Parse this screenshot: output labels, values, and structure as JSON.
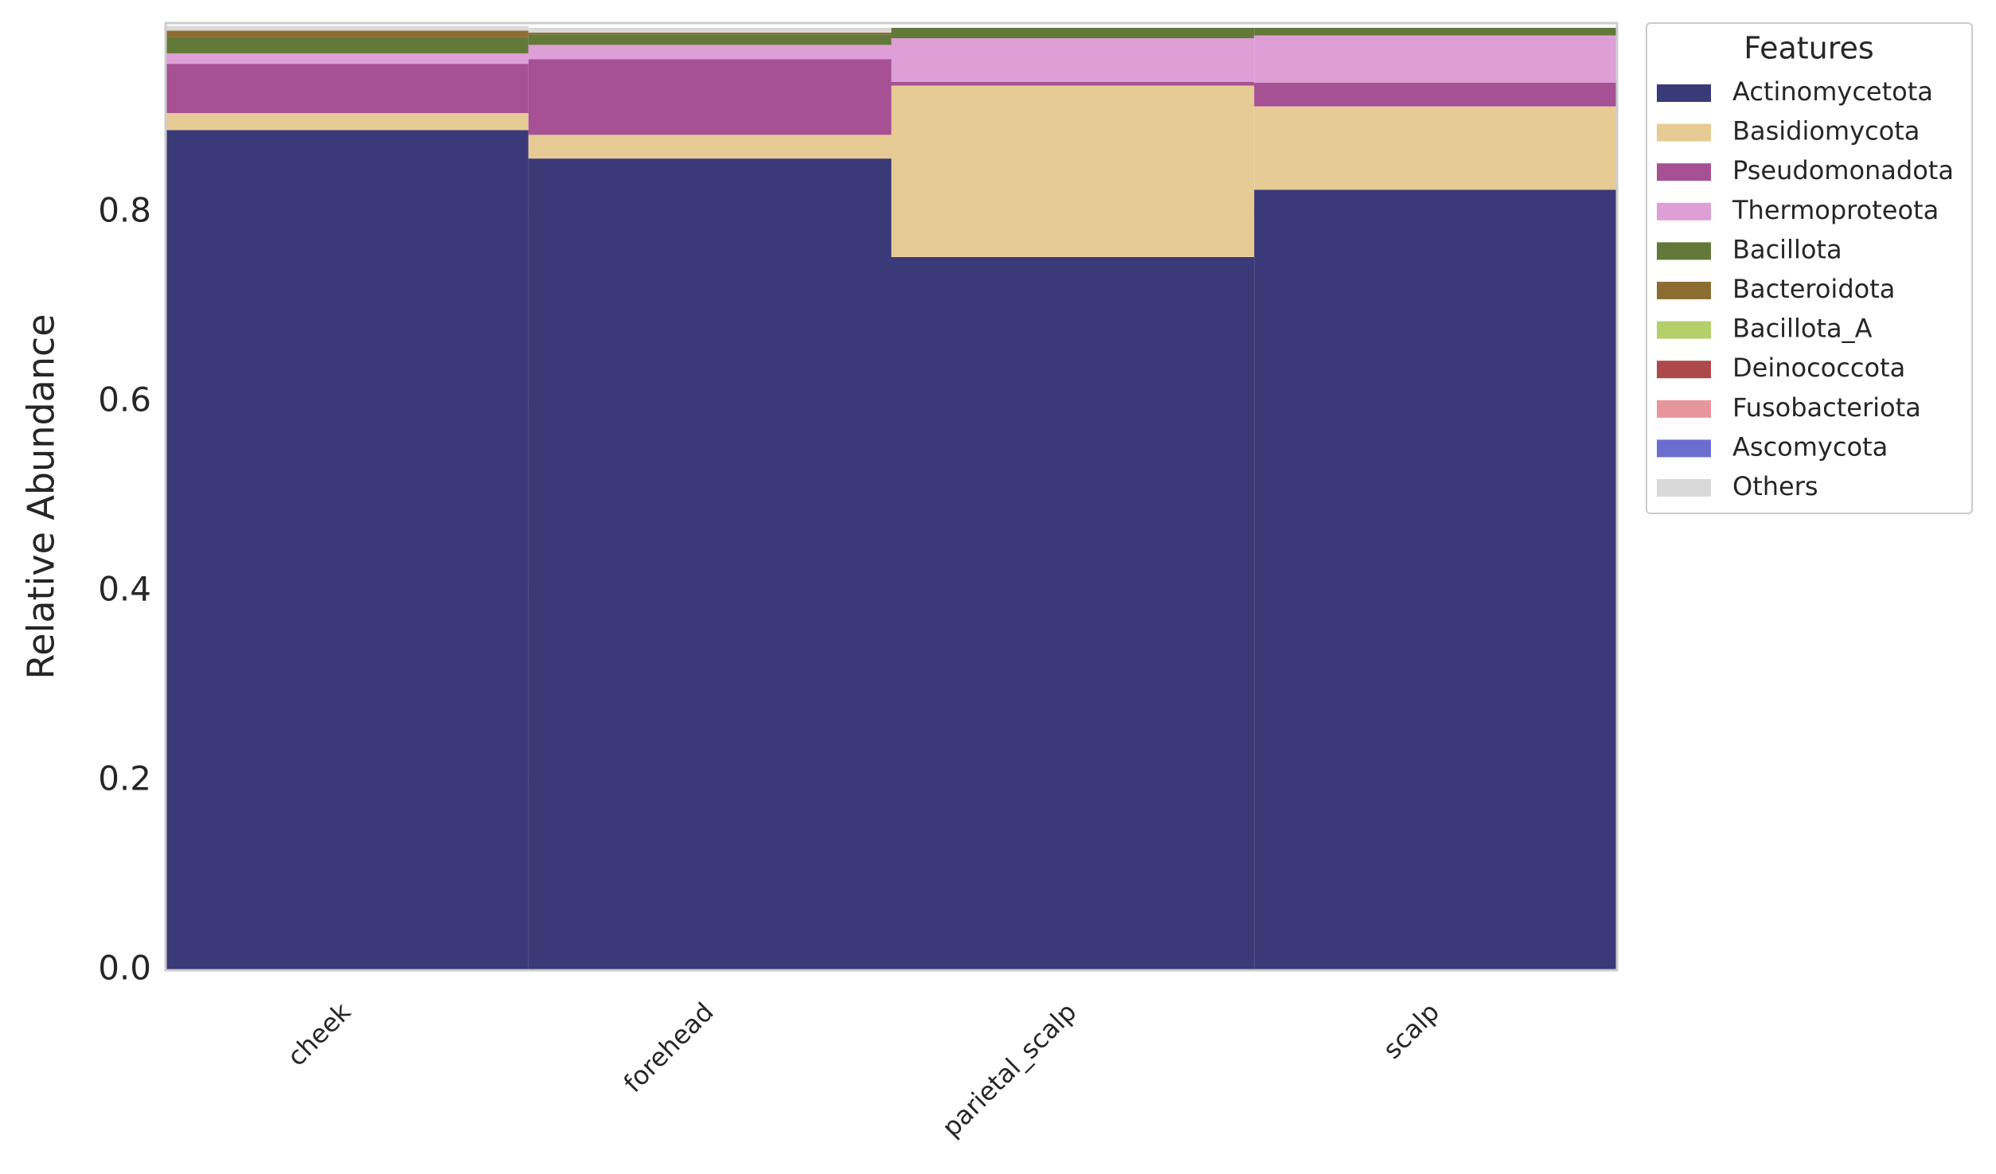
{
  "chart_data": {
    "type": "stacked_bar",
    "y_label": "Relative Abundance",
    "legend_title": "Features",
    "legend_position": "outside right",
    "categories": [
      "cheek",
      "forehead",
      "parietal_scalp",
      "scalp"
    ],
    "series": [
      {
        "name": "Actinomycetota",
        "color": "#3a3a78",
        "values": [
          0.887,
          0.857,
          0.753,
          0.824
        ]
      },
      {
        "name": "Basidiomycota",
        "color": "#e7cb94",
        "values": [
          0.018,
          0.025,
          0.181,
          0.088
        ]
      },
      {
        "name": "Pseudomonadota",
        "color": "#a55194",
        "values": [
          0.052,
          0.08,
          0.004,
          0.025
        ]
      },
      {
        "name": "Thermoproteota",
        "color": "#de9ed6",
        "values": [
          0.011,
          0.015,
          0.046,
          0.05
        ]
      },
      {
        "name": "Bacillota",
        "color": "#637939",
        "values": [
          0.017,
          0.011,
          0.011,
          0.008
        ]
      },
      {
        "name": "Bacteroidota",
        "color": "#8c6d31",
        "values": [
          0.007,
          0.002,
          0,
          0
        ]
      },
      {
        "name": "Bacillota_A",
        "color": "#b5cf6b",
        "values": [
          0,
          0,
          0,
          0
        ]
      },
      {
        "name": "Deinococcota",
        "color": "#ad494a",
        "values": [
          0,
          0,
          0,
          0
        ]
      },
      {
        "name": "Fusobacteriota",
        "color": "#e7969c",
        "values": [
          0,
          0,
          0,
          0
        ]
      },
      {
        "name": "Ascomycota",
        "color": "#6b6ecf",
        "values": [
          0,
          0,
          0,
          0
        ]
      },
      {
        "name": "Others",
        "color": "#d9d9d9",
        "values": [
          0.005,
          0.005,
          0,
          0
        ]
      }
    ],
    "ylim": [
      0,
      1.0
    ],
    "yticks": [
      {
        "value": 0,
        "label": "0.0"
      },
      0.2,
      0.4,
      0.6,
      0.8
    ]
  }
}
